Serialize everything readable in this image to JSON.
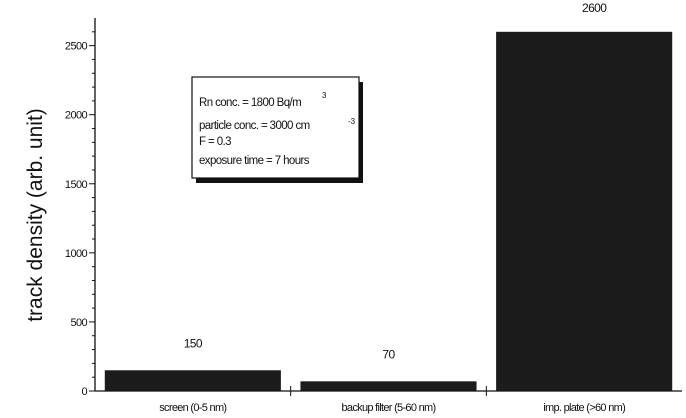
{
  "chart_data": {
    "type": "bar",
    "categories": [
      "screen (0-5 nm)",
      "backup filter (5-60 nm)",
      "imp. plate (>60 nm)"
    ],
    "values": [
      150,
      70,
      2600
    ],
    "data_labels": [
      "150",
      "70",
      "2600"
    ],
    "title": "",
    "xlabel": "",
    "ylabel": "track density (arb. unit)",
    "ylim": [
      0,
      2700
    ],
    "yticks": [
      0,
      500,
      1000,
      1500,
      2000,
      2500
    ],
    "grid": false,
    "bar_color": "#1c1c1c",
    "annotation": {
      "line1": "Rn conc. = 1800 Bq/m",
      "line1_sup": "3",
      "line2": "particle conc. = 3000 cm",
      "line2_sup": "-3",
      "line3": "F = 0.3",
      "line4": "exposure time = 7 hours"
    }
  }
}
